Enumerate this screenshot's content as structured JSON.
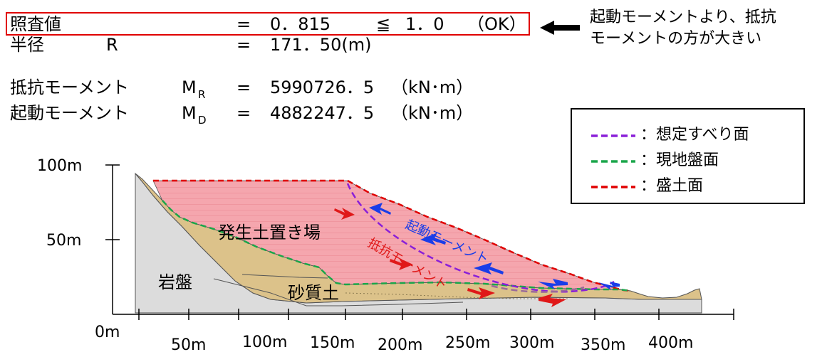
{
  "results": {
    "safety_factor": {
      "label": "照査値",
      "equals": "=",
      "value": "0．815",
      "compare": "≦",
      "threshold": "1．0",
      "judgement": "（OK）"
    },
    "radius": {
      "label": "半径",
      "symbol": "R",
      "equals": "=",
      "value": "171．50(m)"
    },
    "resisting_moment": {
      "label": "抵抗モーメント",
      "symbol": "M",
      "subscript": "R",
      "equals": "=",
      "value": "5990726．5",
      "unit": "（kN･m）"
    },
    "driving_moment": {
      "label": "起動モーメント",
      "symbol": "M",
      "subscript": "D",
      "equals": "=",
      "value": "4882247．5",
      "unit": "（kN･m）"
    }
  },
  "note": {
    "line1": "起動モーメントより、抵抗",
    "line2": "モーメントの方が大きい"
  },
  "legend": [
    {
      "label": "：想定すべり面",
      "color": "#8a1fd8"
    },
    {
      "label": "：現地盤面",
      "color": "#1aa64a"
    },
    {
      "label": "：盛土面",
      "color": "#e00000"
    }
  ],
  "diagram": {
    "y_ticks": [
      "100m",
      "50m",
      "0m"
    ],
    "x_ticks": [
      "50m",
      "100m",
      "150m",
      "200m",
      "250m",
      "300m",
      "350m",
      "400m"
    ],
    "zones": {
      "rock": "岩盤",
      "sand": "砂質土",
      "fill": "発生土置き場"
    },
    "driving_label": "起動モーメント",
    "resisting_label": "抵抗モーメント"
  },
  "colors": {
    "highlight": "#e00000",
    "driving": "#1a3de8",
    "resisting": "#e01818",
    "rock": "#dcdcdc",
    "sand": "#dcc28a",
    "fill": "#f5a6ae"
  }
}
